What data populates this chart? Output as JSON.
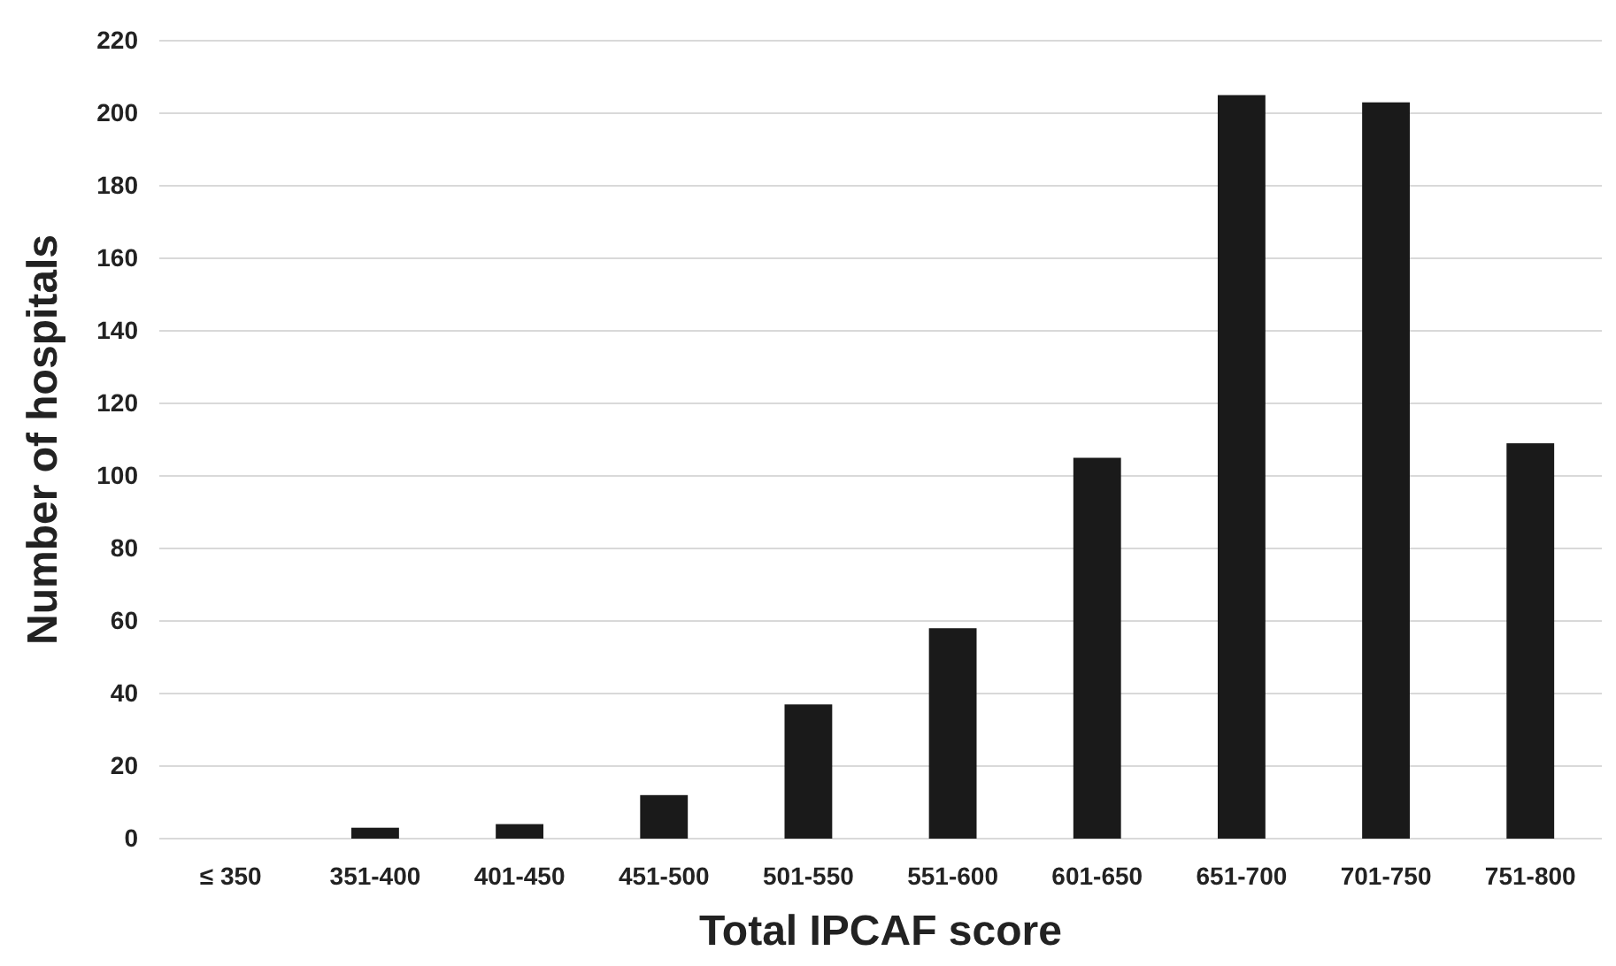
{
  "chart_data": {
    "type": "bar",
    "xlabel": "Total IPCAF score",
    "ylabel": "Number of hospitals",
    "categories": [
      "≤ 350",
      "351-400",
      "401-450",
      "451-500",
      "501-550",
      "551-600",
      "601-650",
      "651-700",
      "701-750",
      "751-800"
    ],
    "values": [
      0,
      3,
      4,
      12,
      37,
      58,
      105,
      205,
      203,
      109
    ],
    "color": "#1a1a1a",
    "ylim": [
      0,
      220
    ],
    "yticks": [
      0,
      20,
      40,
      60,
      80,
      100,
      120,
      140,
      160,
      180,
      200,
      220
    ],
    "grid": "y"
  }
}
